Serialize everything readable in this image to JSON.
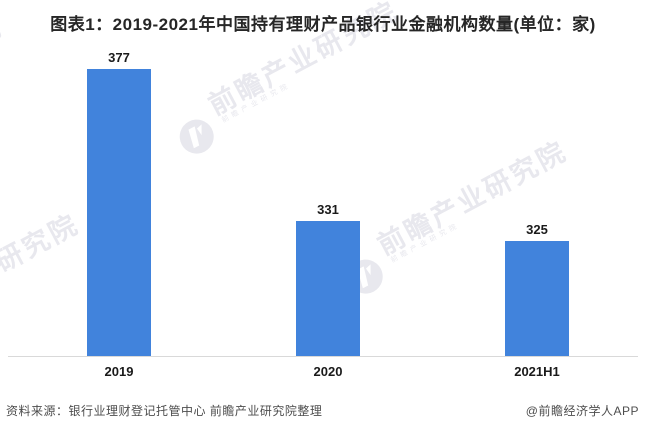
{
  "chart": {
    "title": "图表1：2019-2021年中国持有理财产品银行业金融机构数量(单位：家)"
  },
  "chart_data": {
    "type": "bar",
    "title": "图表1：2019-2021年中国持有理财产品银行业金融机构数量(单位：家)",
    "unit": "家",
    "categories": [
      "2019",
      "2020",
      "2021H1"
    ],
    "values": [
      377,
      331,
      325
    ],
    "xlabel": "",
    "ylabel": "",
    "data_labels": true,
    "grid": false,
    "legend": false,
    "axis_baseline_value": 290
  },
  "watermark": {
    "text": "前瞻产业研究院",
    "subtext": "前瞻产业研究院",
    "logo": "qianzhan-logo"
  },
  "footer": {
    "source": "资料来源：银行业理财登记托管中心 前瞻产业研究院整理",
    "credit": "@前瞻经济学人APP"
  },
  "colors": {
    "bar": "#4183DC",
    "title_text": "#262626",
    "label_text": "#1a1a1a",
    "axis_line": "#d9d9d9",
    "footer_text": "#4d4d4d",
    "watermark": "#e8e8ee"
  }
}
